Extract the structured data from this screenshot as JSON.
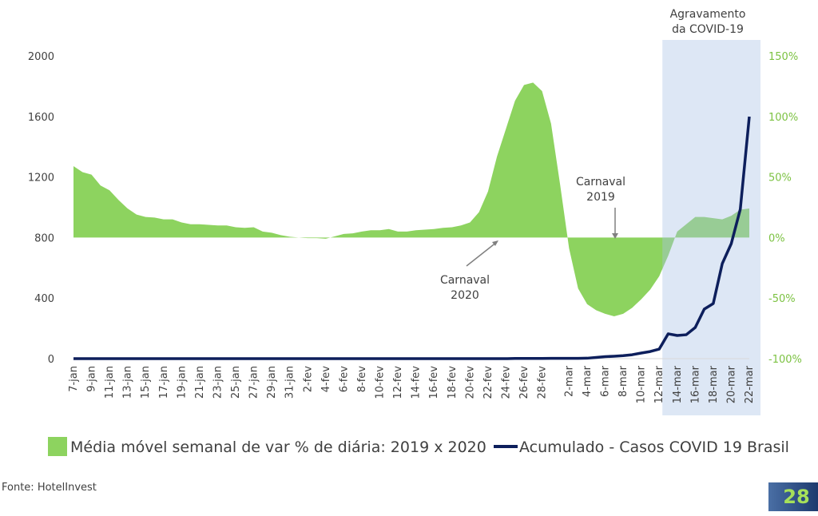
{
  "chart_data": {
    "type": "area-line",
    "categories": [
      "7-jan",
      null,
      "9-jan",
      null,
      "11-jan",
      null,
      "13-jan",
      null,
      "15-jan",
      null,
      "17-jan",
      null,
      "19-jan",
      null,
      "21-jan",
      null,
      "23-jan",
      null,
      "25-jan",
      null,
      "27-jan",
      null,
      "29-jan",
      null,
      "31-jan",
      null,
      "2-fev",
      null,
      "4-fev",
      null,
      "6-fev",
      null,
      "8-fev",
      null,
      "10-fev",
      null,
      "12-fev",
      null,
      "14-fev",
      null,
      "16-fev",
      null,
      "18-fev",
      null,
      "20-fev",
      null,
      "22-fev",
      null,
      "24-fev",
      null,
      "26-fev",
      null,
      "28-fev",
      null,
      null,
      "2-mar",
      null,
      "4-mar",
      null,
      "6-mar",
      null,
      "8-mar",
      null,
      "10-mar",
      null,
      "12-mar",
      null,
      "14-mar",
      null,
      "16-mar",
      null,
      "18-mar",
      null,
      "20-mar",
      null,
      "22-mar"
    ],
    "series": [
      {
        "name": "Média móvel semanal de var % de diária: 2019 x 2020",
        "color": "#8dd35f",
        "axis": "y2",
        "values": [
          59,
          54,
          52,
          43,
          39,
          31,
          24,
          19,
          17,
          16.5,
          15,
          15,
          12.5,
          11,
          11,
          10.5,
          10,
          10,
          8.5,
          8,
          8.5,
          5,
          4,
          2,
          0.7,
          0,
          -0.5,
          -0.5,
          -1,
          1,
          3,
          3.5,
          5,
          6,
          6,
          7,
          5,
          5,
          6,
          6.5,
          7,
          8,
          8.5,
          10,
          12.5,
          21,
          38,
          67,
          90,
          113,
          126,
          128,
          121,
          94,
          44,
          -9,
          -42,
          -55,
          -60,
          -63,
          -65,
          -63,
          -58,
          -51,
          -43,
          -32,
          -15,
          5,
          11,
          17,
          17,
          16,
          15,
          18,
          23,
          24
        ]
      },
      {
        "name": "Acumulado - Casos COVID 19 Brasil",
        "color": "#0d1f5c",
        "values": [
          0,
          0,
          0,
          0,
          0,
          0,
          0,
          0,
          0,
          0,
          0,
          0,
          0,
          0,
          0,
          0,
          0,
          0,
          0,
          0,
          0,
          0,
          0,
          0,
          0,
          0,
          0,
          0,
          0,
          0,
          0,
          0,
          0,
          0,
          0,
          0,
          0,
          0,
          0,
          0,
          0,
          0,
          0,
          0,
          0,
          0,
          0,
          0,
          0,
          1,
          1,
          1,
          1,
          2,
          2,
          2,
          2,
          3,
          8,
          13,
          16,
          20,
          26,
          37,
          47,
          63,
          164,
          153,
          158,
          206,
          327,
          364,
          628,
          760,
          987,
          1599
        ]
      }
    ],
    "ylim": [
      0,
      2000
    ],
    "yticks": [
      0,
      400,
      800,
      1200,
      1600,
      2000
    ],
    "y2lim": [
      -100,
      150
    ],
    "y2ticks": [
      {
        "value": -100,
        "label": "-100%"
      },
      {
        "value": -50,
        "label": "-50%"
      },
      {
        "value": 0,
        "label": "0%"
      },
      {
        "value": 50,
        "label": "50%"
      },
      {
        "value": 100,
        "label": "100%"
      },
      {
        "value": 150,
        "label": "150%"
      }
    ],
    "annotations": [
      [
        "Agravamento",
        "da COVID-19"
      ],
      [
        "Carnaval",
        "2019"
      ],
      [
        "Carnaval",
        "2020"
      ]
    ]
  },
  "source": "Fonte: HotelInvest",
  "page_number": "28"
}
